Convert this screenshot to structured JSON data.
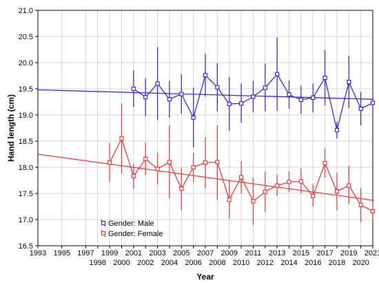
{
  "chart_data": {
    "type": "line",
    "title": "",
    "xlabel": "Year",
    "ylabel": "Hand length (cm)",
    "xlim": [
      1993,
      2021
    ],
    "ylim": [
      16.5,
      21.0
    ],
    "y_ticks": [
      "16.5",
      "17.0",
      "17.5",
      "18.0",
      "18.5",
      "19.0",
      "19.5",
      "20.0",
      "20.5",
      "21.0"
    ],
    "x_ticks_upper": [
      "1993",
      "1995",
      "1997",
      "1999",
      "2001",
      "2003",
      "2005",
      "2007",
      "2009",
      "2011",
      "2013",
      "2015",
      "2017",
      "2019",
      "2021"
    ],
    "x_ticks_lower": [
      "1998",
      "2000",
      "2002",
      "2004",
      "2006",
      "2008",
      "2010",
      "2012",
      "2014",
      "2016",
      "2018",
      "2020"
    ],
    "grid": true,
    "legend_position": "bottom-left",
    "series": [
      {
        "name": "Gender: Male",
        "color": "#2b2bd0",
        "marker": "square",
        "points": [
          {
            "x": 2001,
            "y": 19.5,
            "lo": 19.15,
            "hi": 19.85
          },
          {
            "x": 2002,
            "y": 19.34,
            "lo": 18.98,
            "hi": 19.7
          },
          {
            "x": 2003,
            "y": 19.6,
            "lo": 18.9,
            "hi": 20.3
          },
          {
            "x": 2004,
            "y": 19.3,
            "lo": 18.95,
            "hi": 19.65
          },
          {
            "x": 2005,
            "y": 19.4,
            "lo": 19.02,
            "hi": 19.78
          },
          {
            "x": 2006,
            "y": 18.95,
            "lo": 18.38,
            "hi": 19.52
          },
          {
            "x": 2007,
            "y": 19.76,
            "lo": 19.35,
            "hi": 20.17
          },
          {
            "x": 2008,
            "y": 19.53,
            "lo": 19.07,
            "hi": 19.99
          },
          {
            "x": 2009,
            "y": 19.21,
            "lo": 18.7,
            "hi": 19.72
          },
          {
            "x": 2010,
            "y": 19.22,
            "lo": 18.85,
            "hi": 19.6
          },
          {
            "x": 2011,
            "y": 19.35,
            "lo": 19.05,
            "hi": 19.65
          },
          {
            "x": 2012,
            "y": 19.52,
            "lo": 19.07,
            "hi": 19.98
          },
          {
            "x": 2013,
            "y": 19.78,
            "lo": 19.08,
            "hi": 20.48
          },
          {
            "x": 2014,
            "y": 19.39,
            "lo": 19.12,
            "hi": 19.66
          },
          {
            "x": 2015,
            "y": 19.29,
            "lo": 19.02,
            "hi": 19.56
          },
          {
            "x": 2016,
            "y": 19.33,
            "lo": 19.05,
            "hi": 19.6
          },
          {
            "x": 2017,
            "y": 19.71,
            "lo": 19.18,
            "hi": 20.24
          },
          {
            "x": 2018,
            "y": 18.71,
            "lo": 18.55,
            "hi": 18.87
          },
          {
            "x": 2019,
            "y": 19.63,
            "lo": 19.13,
            "hi": 20.13
          },
          {
            "x": 2020,
            "y": 19.12,
            "lo": 18.8,
            "hi": 19.44
          },
          {
            "x": 2021,
            "y": 19.23,
            "lo": 19.05,
            "hi": 19.4
          }
        ],
        "trend": {
          "x": [
            1993,
            2021
          ],
          "y": [
            19.48,
            19.3
          ]
        }
      },
      {
        "name": "Gender: Female",
        "color": "#e23b3b",
        "marker": "square",
        "points": [
          {
            "x": 1999,
            "y": 18.09,
            "lo": 17.72,
            "hi": 18.46
          },
          {
            "x": 2000,
            "y": 18.55,
            "lo": 17.88,
            "hi": 19.22
          },
          {
            "x": 2001,
            "y": 17.83,
            "lo": 17.59,
            "hi": 18.07
          },
          {
            "x": 2002,
            "y": 18.16,
            "lo": 17.85,
            "hi": 18.47
          },
          {
            "x": 2003,
            "y": 17.97,
            "lo": 17.67,
            "hi": 18.28
          },
          {
            "x": 2004,
            "y": 18.1,
            "lo": 17.4,
            "hi": 18.8
          },
          {
            "x": 2005,
            "y": 17.59,
            "lo": 17.18,
            "hi": 18.0
          },
          {
            "x": 2006,
            "y": 18.0,
            "lo": 17.72,
            "hi": 18.28
          },
          {
            "x": 2007,
            "y": 18.09,
            "lo": 17.6,
            "hi": 18.58
          },
          {
            "x": 2008,
            "y": 18.1,
            "lo": 17.38,
            "hi": 18.8
          },
          {
            "x": 2009,
            "y": 17.38,
            "lo": 17.02,
            "hi": 17.75
          },
          {
            "x": 2010,
            "y": 17.81,
            "lo": 17.5,
            "hi": 18.12
          },
          {
            "x": 2011,
            "y": 17.35,
            "lo": 16.9,
            "hi": 17.8
          },
          {
            "x": 2012,
            "y": 17.53,
            "lo": 17.15,
            "hi": 17.92
          },
          {
            "x": 2013,
            "y": 17.65,
            "lo": 17.45,
            "hi": 17.86
          },
          {
            "x": 2014,
            "y": 17.72,
            "lo": 17.53,
            "hi": 17.92
          },
          {
            "x": 2015,
            "y": 17.73,
            "lo": 17.5,
            "hi": 17.98
          },
          {
            "x": 2016,
            "y": 17.45,
            "lo": 17.25,
            "hi": 17.68
          },
          {
            "x": 2017,
            "y": 18.08,
            "lo": 17.8,
            "hi": 18.36
          },
          {
            "x": 2018,
            "y": 17.54,
            "lo": 17.18,
            "hi": 17.9
          },
          {
            "x": 2019,
            "y": 17.65,
            "lo": 17.3,
            "hi": 18.02
          },
          {
            "x": 2020,
            "y": 17.28,
            "lo": 16.95,
            "hi": 17.6
          },
          {
            "x": 2021,
            "y": 17.16,
            "lo": 16.99,
            "hi": 17.33
          }
        ],
        "trend": {
          "x": [
            1993,
            2021
          ],
          "y": [
            18.25,
            17.37
          ]
        }
      }
    ]
  }
}
